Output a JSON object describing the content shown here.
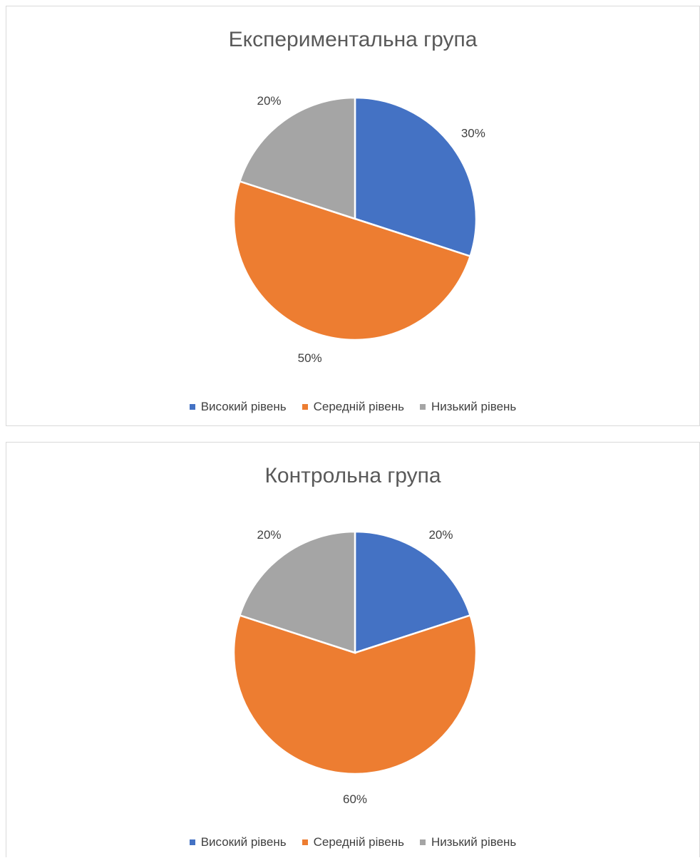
{
  "chart_data": [
    {
      "type": "pie",
      "title": "Експериментальна група",
      "categories": [
        "Високий рівень",
        "Середній рівень",
        "Низький рівень"
      ],
      "values": [
        30,
        50,
        20
      ],
      "labels": [
        "30%",
        "50%",
        "20%"
      ],
      "colors": [
        "#4472c4",
        "#ed7d31",
        "#a5a5a5"
      ],
      "legend_position": "bottom"
    },
    {
      "type": "pie",
      "title": "Контрольна група",
      "categories": [
        "Високий рівень",
        "Середній рівень",
        "Низький рівень"
      ],
      "values": [
        20,
        60,
        20
      ],
      "labels": [
        "20%",
        "60%",
        "20%"
      ],
      "colors": [
        "#4472c4",
        "#ed7d31",
        "#a5a5a5"
      ],
      "legend_position": "bottom"
    }
  ]
}
